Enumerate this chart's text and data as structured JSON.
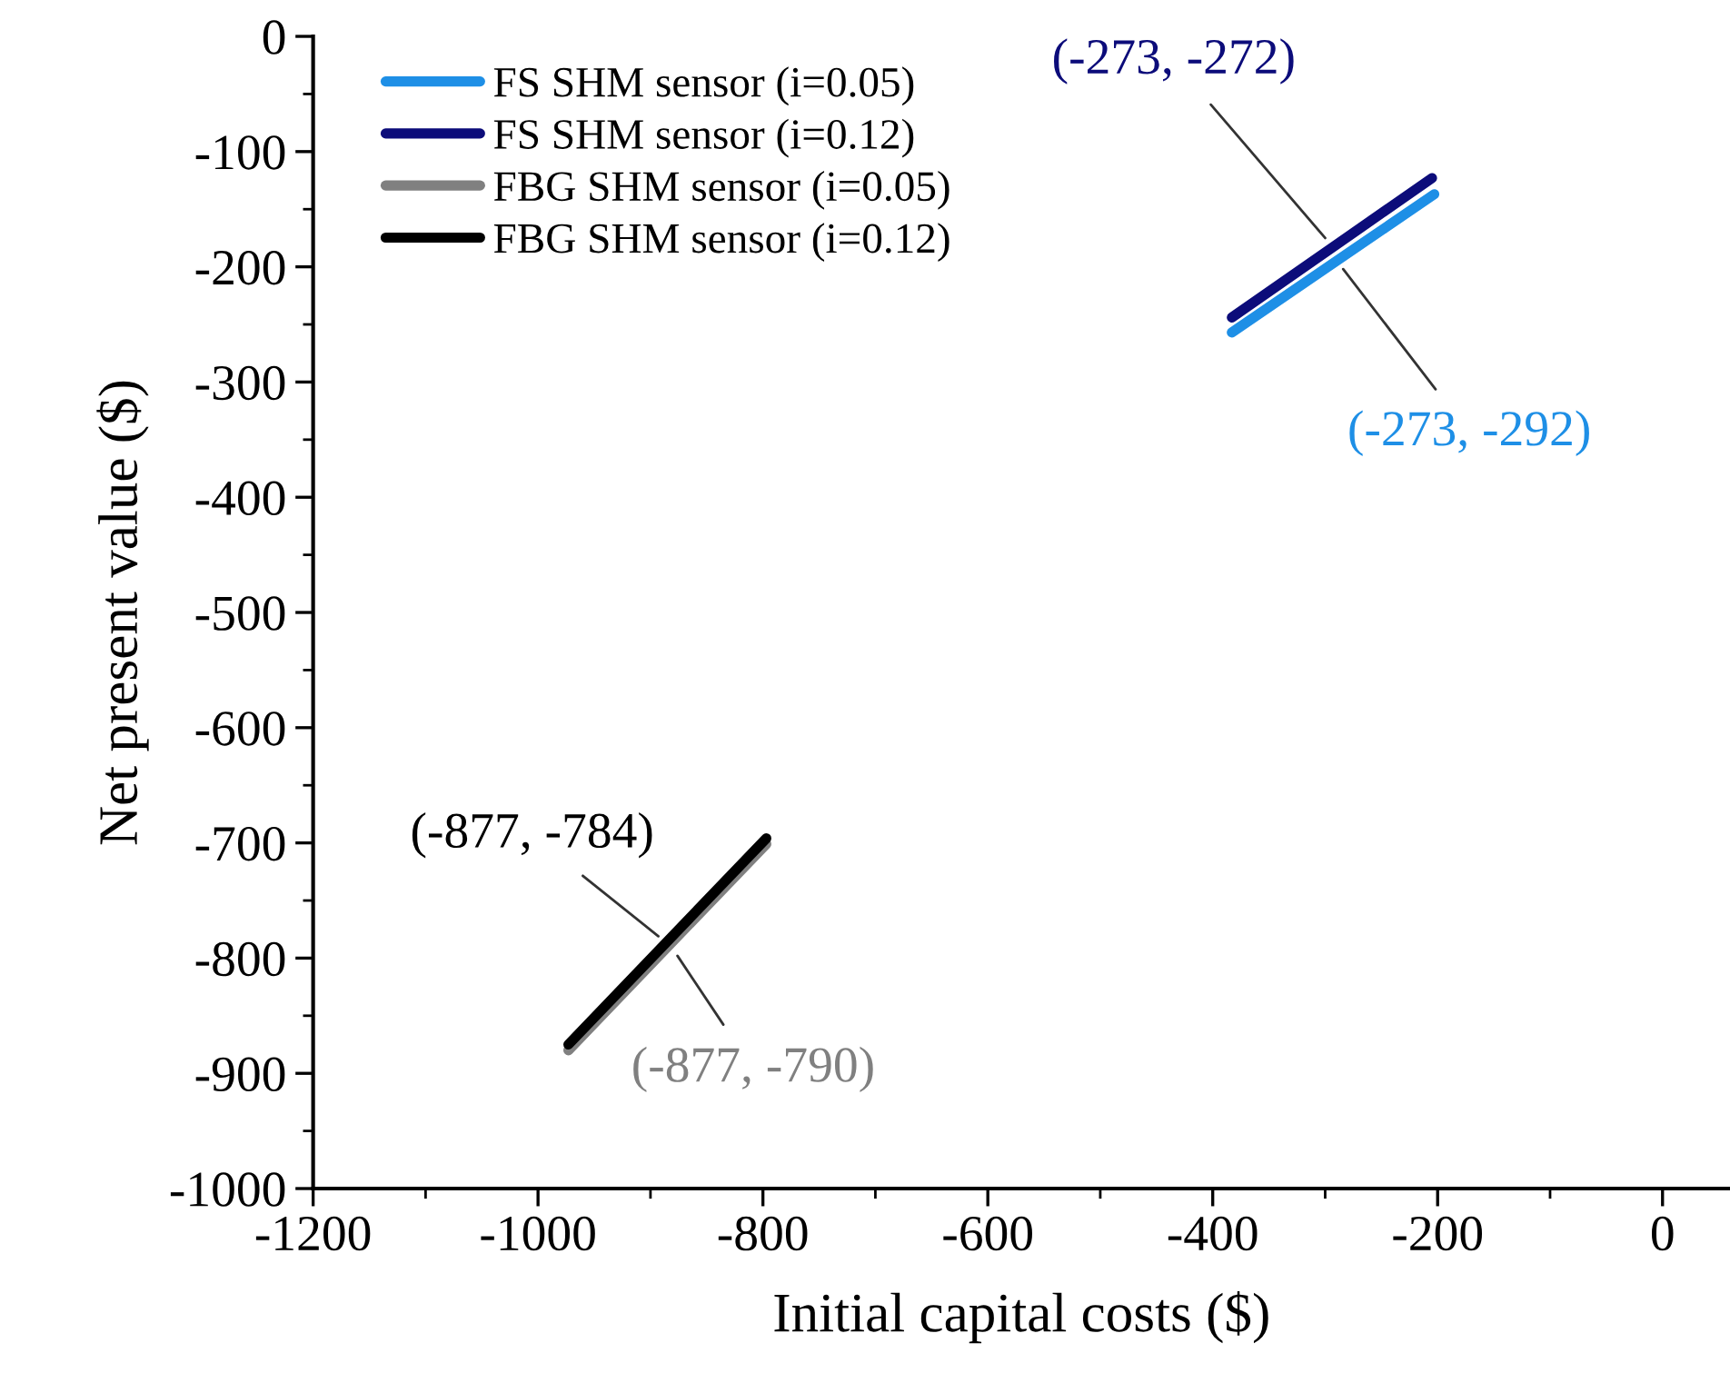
{
  "chart_data": {
    "type": "line",
    "xlabel": "Initial capital costs ($)",
    "ylabel": "Net present value ($)",
    "xlim": [
      -1200,
      60
    ],
    "xticks": [
      -1200,
      -1000,
      -800,
      -600,
      -400,
      -200,
      0
    ],
    "ylim": [
      -1000,
      0
    ],
    "yticks": [
      -1000,
      -900,
      -800,
      -700,
      -600,
      -500,
      -400,
      -300,
      -200,
      -100,
      0
    ],
    "grid": false,
    "legend": "top left",
    "marker": "none",
    "line_style": "solid",
    "series": [
      {
        "name": "FS SHM sensor (i=0.05)",
        "color": "#1e8fe6",
        "x": [
          -383,
          -203
        ],
        "values": [
          -257,
          -137
        ]
      },
      {
        "name": "FS SHM sensor (i=0.12)",
        "color": "#0c0c7a",
        "x": [
          -383,
          -205
        ],
        "values": [
          -244,
          -123
        ]
      },
      {
        "name": "FBG SHM sensor (i=0.05)",
        "color": "#808080",
        "x": [
          -973,
          -797
        ],
        "values": [
          -880,
          -701
        ]
      },
      {
        "name": "FBG SHM sensor (i=0.12)",
        "color": "#000000",
        "x": [
          -973,
          -797
        ],
        "values": [
          -875,
          -696
        ]
      }
    ],
    "annotations": [
      {
        "text": "(-273, -292)",
        "x": -284,
        "y": -202
      },
      {
        "text": "(-273, -272)",
        "x": -300,
        "y": -175
      },
      {
        "text": "(-877, -790)",
        "x": -876,
        "y": -798
      },
      {
        "text": "(-877, -784)",
        "x": -893,
        "y": -781
      }
    ]
  }
}
